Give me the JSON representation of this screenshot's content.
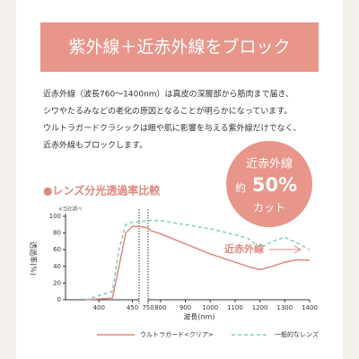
{
  "header": {
    "title": "紫外線＋近赤外線をブロック"
  },
  "body": [
    "近赤外線（波長760〜1400nm）は真皮の深層部から筋肉まで届き、",
    "シワやたるみなどの老化の原因となることが明らかになっています。",
    "ウルトラガードクラシックは眼や肌に影響を与える紫外線だけでなく、",
    "近赤外線もブロックします。"
  ],
  "badge": {
    "line1": "近赤外線",
    "prefix": "約",
    "value": "50%",
    "line3": "カット"
  },
  "chart_data": {
    "type": "line",
    "title": "●レンズ分光透過率比較",
    "subtitle": "※当社調べ",
    "xlabel": "波長(nm)",
    "ylabel": "透過率(%)",
    "annotation": "近赤外線",
    "xlim": [
      [
        350,
        460
      ],
      [
        750,
        1400
      ]
    ],
    "xticks": [
      400,
      450,
      750,
      800,
      900,
      1000,
      1100,
      1200,
      1300,
      1400
    ],
    "ylim": [
      0,
      100
    ],
    "yticks": [
      0,
      20,
      40,
      60,
      80,
      100
    ],
    "x": [
      380,
      420,
      430,
      440,
      450,
      460,
      750,
      760,
      800,
      900,
      1000,
      1100,
      1150,
      1200,
      1250,
      1300,
      1350,
      1400
    ],
    "series": [
      {
        "name": "ウルトラガード<クリア>",
        "color": "#e0877f",
        "style": "solid",
        "values": [
          0,
          2,
          40,
          80,
          88,
          88,
          86,
          83,
          79,
          67,
          55,
          45,
          40,
          36,
          40,
          45,
          48,
          47
        ]
      },
      {
        "name": "一般的なレンズ",
        "color": "#7ccdc3",
        "style": "dashed",
        "values": [
          0,
          10,
          60,
          90,
          93,
          93,
          95,
          95,
          95,
          90,
          85,
          78,
          74,
          62,
          70,
          75,
          68,
          60
        ]
      }
    ],
    "legend": "bottom"
  }
}
